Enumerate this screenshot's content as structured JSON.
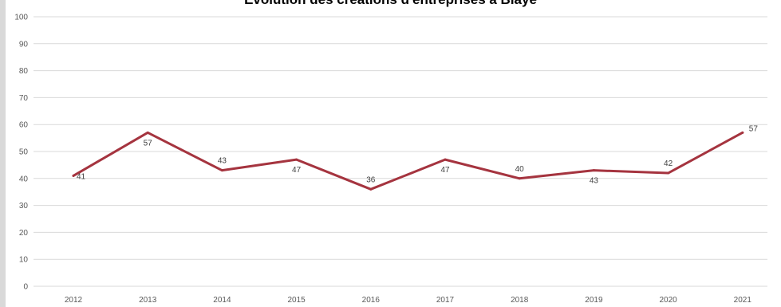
{
  "chart_data": {
    "type": "line",
    "title": "Evolution des créations d'entreprises à Blaye",
    "xlabel": "",
    "ylabel": "",
    "x": [
      "2012",
      "2013",
      "2014",
      "2015",
      "2016",
      "2017",
      "2018",
      "2019",
      "2020",
      "2021"
    ],
    "series": [
      {
        "values": [
          41,
          57,
          43,
          47,
          36,
          47,
          40,
          43,
          42,
          57
        ],
        "color": "#a5343f",
        "data_labels": [
          "41",
          "57",
          "43",
          "47",
          "36",
          "47",
          "40",
          "43",
          "42",
          "57"
        ]
      }
    ],
    "ylim": [
      0,
      100
    ],
    "yticks": [
      "0",
      "10",
      "20",
      "30",
      "40",
      "50",
      "60",
      "70",
      "80",
      "90",
      "100"
    ],
    "grid": true,
    "gridline_color": "#d9d9d9",
    "legend": "none"
  }
}
